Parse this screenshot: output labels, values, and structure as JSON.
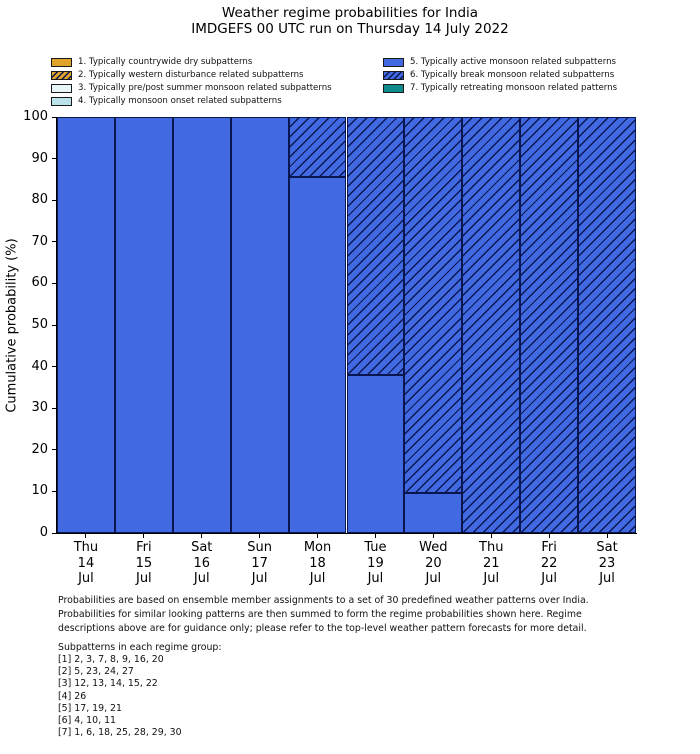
{
  "title": {
    "line1": "Weather regime probabilities for India",
    "line2": "IMDGEFS 00 UTC run on Thursday 14 July 2022"
  },
  "colors": {
    "bar_blue": "#4169e1",
    "bar_edge": "#0a1650",
    "orange": "#dfa32b",
    "pale_cyan": "#e8f6fa",
    "light_blue": "#b9e2ea",
    "teal": "#0f8b8b"
  },
  "legend": {
    "columns": [
      [
        {
          "label": "1. Typically countrywide dry subpatterns",
          "color": "#dfa32b",
          "hatched": false
        },
        {
          "label": "2. Typically western disturbance related subpatterns",
          "color": "#dfa32b",
          "hatched": true
        },
        {
          "label": "3. Typically pre/post summer monsoon related subpatterns",
          "color": "#e8f6fa",
          "hatched": false
        },
        {
          "label": "4. Typically monsoon onset related subpatterns",
          "color": "#b9e2ea",
          "hatched": false
        }
      ],
      [
        {
          "label": "5. Typically active monsoon related subpatterns",
          "color": "#4169e1",
          "hatched": false
        },
        {
          "label": "6. Typically break monsoon related subpatterns",
          "color": "#4169e1",
          "hatched": true
        },
        {
          "label": "7. Typically retreating monsoon related patterns",
          "color": "#0f8b8b",
          "hatched": false
        }
      ]
    ]
  },
  "chart_data": {
    "type": "bar",
    "stacked": true,
    "title": "Weather regime probabilities for India",
    "subtitle": "IMDGEFS 00 UTC run on Thursday 14 July 2022",
    "categories": [
      "Thu 14 Jul",
      "Fri 15 Jul",
      "Sat 16 Jul",
      "Sun 17 Jul",
      "Mon 18 Jul",
      "Tue 19 Jul",
      "Wed 20 Jul",
      "Thu 21 Jul",
      "Fri 22 Jul",
      "Sat 23 Jul"
    ],
    "series": [
      {
        "name": "5. Typically active monsoon related subpatterns",
        "color": "#4169e1",
        "hatched": false,
        "values": [
          100,
          100,
          100,
          100,
          85.7,
          38.1,
          9.5,
          0,
          0,
          0
        ]
      },
      {
        "name": "6. Typically break monsoon related subpatterns",
        "color": "#4169e1",
        "hatched": true,
        "values": [
          0,
          0,
          0,
          0,
          14.3,
          61.9,
          90.5,
          100,
          100,
          100
        ]
      }
    ],
    "xlabel": "",
    "ylabel": "Cumulative probability (%)",
    "ylim": [
      0,
      100
    ],
    "yticks": [
      0,
      10,
      20,
      30,
      40,
      50,
      60,
      70,
      80,
      90,
      100
    ],
    "grid": false,
    "legend_position": "above-plot",
    "hatch_style": "///"
  },
  "footnote": {
    "lines": [
      "Probabilities are based on ensemble member assignments to a set of 30 predefined weather patterns over India.",
      "Probabilities for similar looking patterns are then summed to form the regime probabilities shown here. Regime",
      "descriptions above are for guidance only; please refer to the top-level weather pattern forecasts for more detail."
    ]
  },
  "subpatterns": {
    "heading": "Subpatterns in each regime group:",
    "groups": [
      "[1] 2, 3, 7, 8, 9, 16, 20",
      "[2] 5, 23, 24, 27",
      "[3] 12, 13, 14, 15, 22",
      "[4] 26",
      "[5] 17, 19, 21",
      "[6] 4, 10, 11",
      "[7] 1, 6, 18, 25, 28, 29, 30"
    ]
  }
}
